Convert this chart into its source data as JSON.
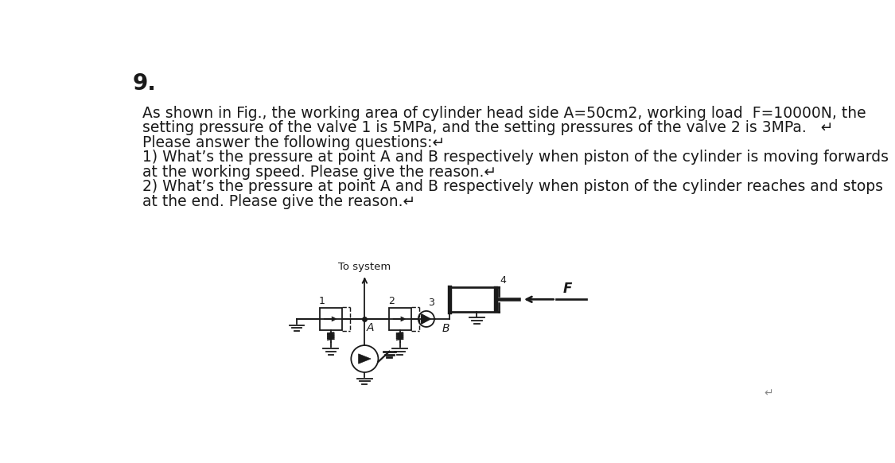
{
  "title_number": "9.",
  "line1": "As shown in Fig., the working area of cylinder head side ",
  "line1_A": "A",
  "line1_mid": "=50cm",
  "line1_sup": "2",
  "line1_end": ", working load  ",
  "line1_F": "F",
  "line1_tail": "=10000N, the",
  "line2": "setting pressure of the valve 1 is 5MPa, and the setting pressures of the valve 2 is 3MPa.   ↵",
  "line3": "Please answer the following questions:↵",
  "line4": "1) What’s the pressure at point A and B respectively when piston of the cylinder is moving forwards",
  "line5": "at the working speed. Please give the reason.↵",
  "line6": "2) What’s the pressure at point A and B respectively when piston of the cylinder reaches and stops",
  "line7": "at the end. Please give the reason.↵",
  "lbl_system": "To system",
  "lbl_A": "A",
  "lbl_B": "B",
  "lbl_F": "F",
  "lbl_1": "1",
  "lbl_2": "2",
  "lbl_3": "3",
  "lbl_4": "4",
  "bg_color": "#ffffff",
  "text_color": "#1a1a1a",
  "title_fontsize": 20,
  "body_fontsize": 13.5,
  "diag_fontsize": 9,
  "diag_lw": 1.3
}
